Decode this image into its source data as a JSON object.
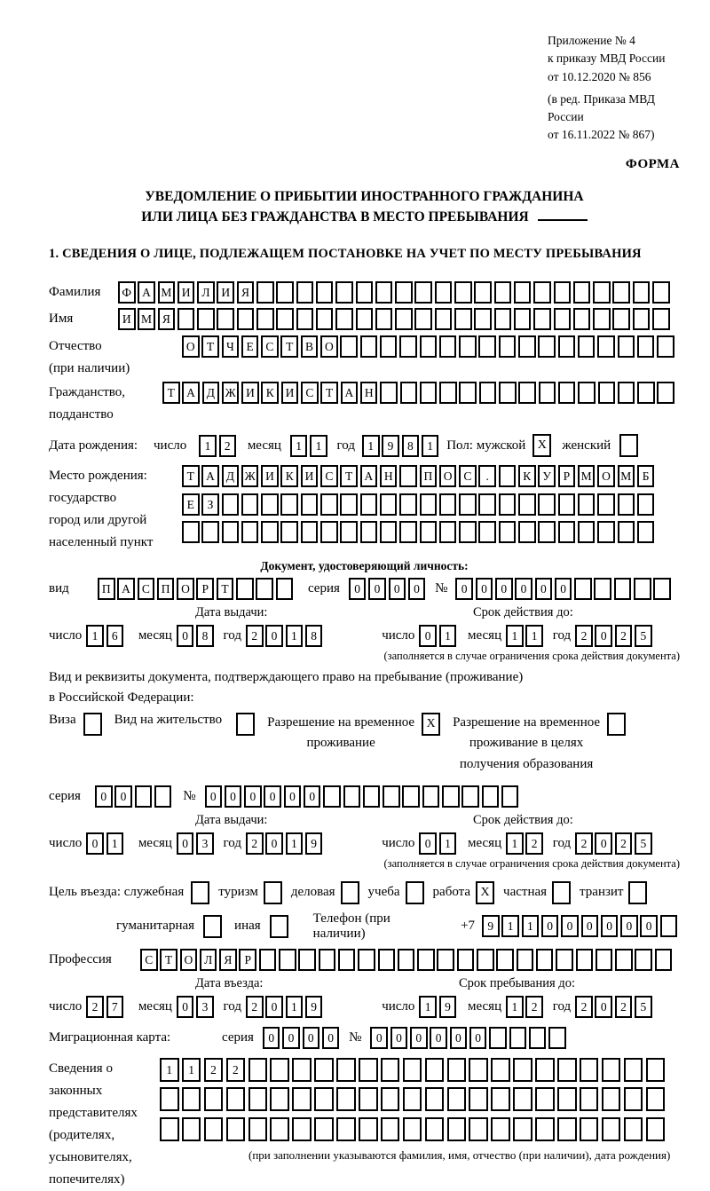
{
  "header": {
    "ref_lines": [
      "Приложение № 4",
      "к приказу МВД России",
      "от 10.12.2020 № 856"
    ],
    "amend_lines": [
      "(в ред. Приказа МВД России",
      "от 16.11.2022 № 867)"
    ],
    "forma": "ФОРМА"
  },
  "title": {
    "line1": "УВЕДОМЛЕНИЕ О ПРИБЫТИИ ИНОСТРАННОГО ГРАЖДАНИНА",
    "line2": "ИЛИ ЛИЦА БЕЗ ГРАЖДАНСТВА В МЕСТО ПРЕБЫВАНИЯ"
  },
  "section1": {
    "heading": "1. СВЕДЕНИЯ О ЛИЦЕ, ПОДЛЕЖАЩЕМ ПОСТАНОВКЕ НА УЧЕТ ПО МЕСТУ ПРЕБЫВАНИЯ"
  },
  "labels": {
    "surname": "Фамилия",
    "name": "Имя",
    "patronymic": "Отчество",
    "if_any": "(при наличии)",
    "citizenship1": "Гражданство,",
    "citizenship2": "подданство",
    "birth_date": "Дата рождения:",
    "day": "число",
    "month": "месяц",
    "year": "год",
    "sex_male": "Пол: мужской",
    "sex_female": "женский",
    "birth_place": "Место рождения:",
    "state": "государство",
    "city1": "город или другой",
    "city2": "населенный пункт",
    "id_doc_heading": "Документ, удостоверяющий личность:",
    "kind": "вид",
    "series": "серия",
    "number": "№",
    "issue_date": "Дата выдачи:",
    "valid_until": "Срок действия до:",
    "valid_note": "(заполняется в случае ограничения срока действия документа)",
    "permit_line1": "Вид и реквизиты документа, подтверждающего право на пребывание (проживание)",
    "permit_line2": "в Российской Федерации:",
    "visa": "Виза",
    "residence_permit": "Вид на жительство",
    "temp_residence1": "Разрешение на временное",
    "temp_residence2": "проживание",
    "temp_edu1": "Разрешение на временное",
    "temp_edu2": "проживание в целях",
    "temp_edu3": "получения образования",
    "purpose": "Цель въезда: служебная",
    "tourism": "туризм",
    "business": "деловая",
    "study": "учеба",
    "work": "работа",
    "private": "частная",
    "transit": "транзит",
    "humanitarian": "гуманитарная",
    "other": "иная",
    "phone": "Телефон (при наличии)",
    "phone_prefix": "+7",
    "profession": "Профессия",
    "entry_date": "Дата въезда:",
    "stay_until": "Срок пребывания до:",
    "migration_card": "Миграционная карта:",
    "legal_lines": [
      "Сведения о",
      "законных",
      "представителях",
      "(родителях,",
      "усыновителях,",
      "попечителях)"
    ],
    "legal_note": "(при заполнении указываются фамилия, имя, отчество (при наличии), дата рождения)"
  },
  "fields": {
    "surname": {
      "value": "ФАМИЛИЯ",
      "length": 28
    },
    "name": {
      "value": "ИМЯ",
      "length": 28
    },
    "patronymic": {
      "value": "ОТЧЕСТВО",
      "length": 25
    },
    "citizenship": {
      "value": "ТАДЖИКИСТАН",
      "length": 26
    },
    "birth": {
      "day": {
        "value": "12",
        "length": 2
      },
      "month": {
        "value": "11",
        "length": 2
      },
      "year": {
        "value": "1981",
        "length": 4
      },
      "male": "X",
      "female": ""
    },
    "birth_place": [
      {
        "value": "ТАДЖИКИСТАН ПОС. КУРМОМБ",
        "length": 24
      },
      {
        "value": "ЕЗ",
        "length": 24
      },
      {
        "value": "",
        "length": 24
      }
    ],
    "id_doc": {
      "kind": {
        "value": "ПАСПОРТ",
        "length": 10
      },
      "series": {
        "value": "0000",
        "length": 4
      },
      "number": {
        "value": "000000",
        "length": 11
      },
      "issue": {
        "day": {
          "value": "16",
          "length": 2
        },
        "month": {
          "value": "08",
          "length": 2
        },
        "year": {
          "value": "2018",
          "length": 4
        }
      },
      "valid": {
        "day": {
          "value": "01",
          "length": 2
        },
        "month": {
          "value": "11",
          "length": 2
        },
        "year": {
          "value": "2025",
          "length": 4
        }
      }
    },
    "permit": {
      "visa": "",
      "residence": "",
      "temp": "X",
      "temp_edu": "",
      "series": {
        "value": "00",
        "length": 4
      },
      "number": {
        "value": "000000",
        "length": 16
      },
      "issue": {
        "day": {
          "value": "01",
          "length": 2
        },
        "month": {
          "value": "03",
          "length": 2
        },
        "year": {
          "value": "2019",
          "length": 4
        }
      },
      "valid": {
        "day": {
          "value": "01",
          "length": 2
        },
        "month": {
          "value": "12",
          "length": 2
        },
        "year": {
          "value": "2025",
          "length": 4
        }
      }
    },
    "purpose": {
      "official": "",
      "tourism": "",
      "business": "",
      "study": "",
      "work": "X",
      "private": "",
      "transit": "",
      "humanitarian": "",
      "other": ""
    },
    "phone": {
      "value": "911000000",
      "length": 10
    },
    "profession": {
      "value": "СТОЛЯР",
      "length": 27
    },
    "entry": {
      "day": {
        "value": "27",
        "length": 2
      },
      "month": {
        "value": "03",
        "length": 2
      },
      "year": {
        "value": "2019",
        "length": 4
      }
    },
    "stay": {
      "day": {
        "value": "19",
        "length": 2
      },
      "month": {
        "value": "12",
        "length": 2
      },
      "year": {
        "value": "2025",
        "length": 4
      }
    },
    "migration_card": {
      "series": {
        "value": "0000",
        "length": 4
      },
      "number": {
        "value": "000000",
        "length": 10
      }
    },
    "legal": [
      {
        "value": "1122",
        "length": 23
      },
      {
        "value": "",
        "length": 23
      },
      {
        "value": "",
        "length": 23
      }
    ]
  }
}
